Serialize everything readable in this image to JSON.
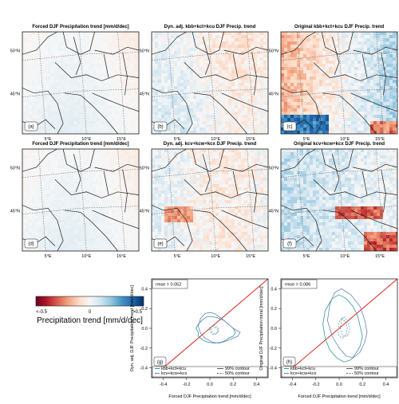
{
  "figure": {
    "panels": [
      {
        "letter": "(a)",
        "title": "Forced DJF Precipitation trend [mm/d/dec]",
        "style": "forced",
        "seed": 11
      },
      {
        "letter": "(b)",
        "title": "Dyn. adj. kbb+kct+kcu DJF Precip. trend",
        "style": "dynadj1",
        "seed": 23
      },
      {
        "letter": "(c)",
        "title": "Original kbb+kct+kcu DJF Precip. trend",
        "style": "orig1",
        "seed": 37
      },
      {
        "letter": "(d)",
        "title": "Forced DJF Precipitation trend [mm/d/dec]",
        "style": "forced",
        "seed": 11
      },
      {
        "letter": "(e)",
        "title": "Dyn. adj. kcv+kcw+kcx DJF Precip. trend",
        "style": "dynadj2",
        "seed": 53
      },
      {
        "letter": "(f)",
        "title": "Original kcv+kcw+kcx DJF Precip. trend",
        "style": "orig2",
        "seed": 71
      }
    ],
    "map_lat_labels": [
      "50°N",
      "45°N"
    ],
    "map_lon_labels": [
      "5°E",
      "10°E",
      "15°E"
    ],
    "colorbar": {
      "label": "Precipitation trend [mm/d/dec]",
      "tick_labels": [
        "<-0.5",
        "0",
        ">0.5"
      ],
      "min": -0.5,
      "max": 0.5,
      "colors": [
        "#67001f",
        "#b2182b",
        "#d6604d",
        "#f4a582",
        "#fddbc7",
        "#f7f7f7",
        "#d1e5f0",
        "#92c5de",
        "#4393c3",
        "#2166ac",
        "#053061"
      ]
    }
  },
  "chart_data": [
    {
      "type": "line",
      "panel": "(g)",
      "rmse_label": "rmse = 0.052",
      "xlabel": "Forced DJF Precipitation trend [mm/d/dec]",
      "ylabel": "Dyn. adj. DJF Precipitation trend [mm/d/dec]",
      "xlim": [
        -0.5,
        0.5
      ],
      "ylim": [
        -0.5,
        0.5
      ],
      "x_ticks": [
        -0.4,
        -0.2,
        0.0,
        0.2,
        0.4
      ],
      "y_ticks": [
        -0.4,
        -0.2,
        0.0,
        0.2,
        0.4
      ],
      "x_tick_labels": [
        "-0.4",
        "-0.2",
        "0.0",
        "0.2",
        "0.4"
      ],
      "y_tick_labels": [
        "-0.4",
        "-0.2",
        "0.0",
        "0.2",
        "0.4"
      ],
      "reference_line": {
        "x": [
          -0.5,
          0.5
        ],
        "y": [
          -0.5,
          0.5
        ],
        "color": "#e0201b"
      },
      "legend_series": [
        "kbb+kct+kcu",
        "kcv+kcw+kcx"
      ],
      "legend_contours": [
        "99% contour",
        "50% contour"
      ],
      "series": [
        {
          "name": "kbb+kct+kcu",
          "color": "#2a9c8c",
          "contour99": {
            "x": [
              0.0,
              0.06,
              0.12,
              0.16,
              0.2,
              0.22,
              0.2,
              0.16,
              0.14,
              0.1,
              0.04,
              -0.02,
              -0.06,
              -0.1,
              -0.1,
              -0.12,
              -0.1,
              -0.06,
              -0.02
            ],
            "y": [
              0.12,
              0.11,
              0.08,
              0.04,
              0.0,
              -0.04,
              -0.08,
              -0.1,
              -0.12,
              -0.14,
              -0.15,
              -0.14,
              -0.12,
              -0.08,
              -0.04,
              0.0,
              0.04,
              0.09,
              0.12
            ]
          },
          "contour50": {
            "x": [
              0.02,
              0.06,
              0.07,
              0.05,
              0.02,
              0.0,
              0.0
            ],
            "y": [
              0.02,
              0.0,
              -0.03,
              -0.06,
              -0.06,
              -0.03,
              0.01
            ]
          }
        },
        {
          "name": "kcv+kcw+kcx",
          "color": "#6b7fbf",
          "contour99": {
            "x": [
              0.0,
              0.04,
              0.1,
              0.16,
              0.2,
              0.26,
              0.24,
              0.2,
              0.14,
              0.08,
              0.02,
              -0.04,
              -0.08,
              -0.1,
              -0.08,
              -0.04
            ],
            "y": [
              0.16,
              0.15,
              0.1,
              0.04,
              0.0,
              -0.04,
              -0.08,
              -0.1,
              -0.13,
              -0.15,
              -0.14,
              -0.1,
              -0.05,
              0.02,
              0.1,
              0.15
            ]
          },
          "contour50": {
            "x": [
              0.03,
              0.07,
              0.08,
              0.06,
              0.03,
              0.01,
              0.01
            ],
            "y": [
              0.03,
              0.01,
              -0.02,
              -0.05,
              -0.05,
              -0.02,
              0.01
            ]
          }
        }
      ]
    },
    {
      "type": "line",
      "panel": "(h)",
      "rmse_label": "rmse = 0.086",
      "xlabel": "Forced DJF Precipitation trend [mm/d/dec]",
      "ylabel": "Original DJF Precipitation trend [mm/d/dec]",
      "xlim": [
        -0.5,
        0.5
      ],
      "ylim": [
        -0.5,
        0.5
      ],
      "x_ticks": [
        -0.4,
        -0.2,
        0.0,
        0.2,
        0.4
      ],
      "y_ticks": [
        -0.4,
        -0.2,
        0.0,
        0.2,
        0.4
      ],
      "x_tick_labels": [
        "-0.4",
        "-0.2",
        "0.0",
        "0.2",
        "0.4"
      ],
      "y_tick_labels": [
        "-0.4",
        "-0.2",
        "0.0",
        "0.2",
        "0.4"
      ],
      "reference_line": {
        "x": [
          -0.5,
          0.5
        ],
        "y": [
          -0.5,
          0.5
        ],
        "color": "#e0201b"
      },
      "legend_series": [
        "kbb+kct+kcu",
        "kcv+kcw+kcx"
      ],
      "legend_contours": [
        "99% contour",
        "50% contour"
      ],
      "series": [
        {
          "name": "kbb+kct+kcu",
          "color": "#2a9c8c",
          "contour99": {
            "x": [
              0.0,
              0.06,
              0.12,
              0.16,
              0.18,
              0.2,
              0.18,
              0.14,
              0.1,
              0.04,
              -0.02,
              -0.08,
              -0.12,
              -0.14,
              -0.12,
              -0.06
            ],
            "y": [
              0.34,
              0.3,
              0.22,
              0.12,
              0.02,
              -0.08,
              -0.18,
              -0.26,
              -0.32,
              -0.34,
              -0.3,
              -0.22,
              -0.1,
              0.04,
              0.18,
              0.3
            ]
          },
          "contour50": {
            "x": [
              0.02,
              0.06,
              0.07,
              0.06,
              0.03,
              0.0,
              -0.01,
              0.0
            ],
            "y": [
              0.1,
              0.06,
              0.0,
              -0.06,
              -0.1,
              -0.08,
              -0.02,
              0.06
            ]
          }
        },
        {
          "name": "kcv+kcw+kcx",
          "color": "#6b7fbf",
          "contour99": {
            "x": [
              0.02,
              0.1,
              0.18,
              0.22,
              0.24,
              0.22,
              0.18,
              0.12,
              0.06,
              0.0,
              -0.06,
              -0.1,
              -0.08,
              -0.04
            ],
            "y": [
              0.4,
              0.34,
              0.22,
              0.08,
              -0.04,
              -0.14,
              -0.24,
              -0.3,
              -0.28,
              -0.2,
              -0.08,
              0.08,
              0.24,
              0.36
            ]
          },
          "contour50": {
            "x": [
              0.04,
              0.08,
              0.09,
              0.07,
              0.03,
              0.01,
              0.02
            ],
            "y": [
              0.12,
              0.06,
              -0.02,
              -0.08,
              -0.08,
              0.0,
              0.08
            ]
          }
        }
      ]
    }
  ]
}
